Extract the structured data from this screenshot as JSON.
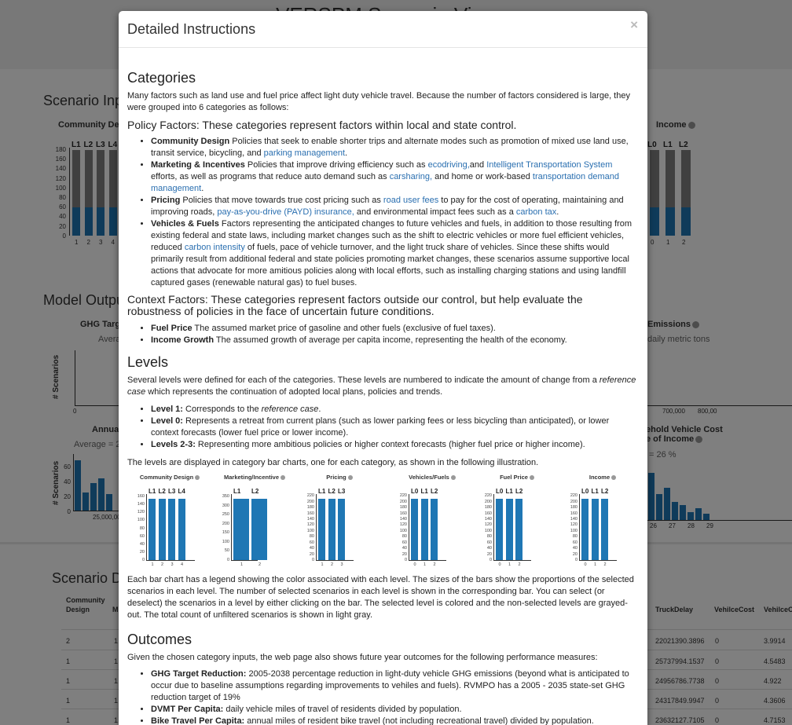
{
  "background": {
    "app_title": "VERSPM Scenario Viewer",
    "scenario_inputs_heading": "Scenario Inp",
    "community_design_caption": "Community Des",
    "income_caption": "Income",
    "left_levels": [
      "L1",
      "L2",
      "L3",
      "L4"
    ],
    "right_levels": [
      "L0",
      "L1",
      "L2"
    ],
    "left_y_ticks": [
      "180",
      "160",
      "140",
      "120",
      "100",
      "80",
      "60",
      "40",
      "20",
      "0"
    ],
    "left_x_ticks": [
      "1",
      "2",
      "3",
      "4"
    ],
    "right_x_ticks": [
      "0",
      "1",
      "2"
    ],
    "model_outputs_heading": "Model Outpu",
    "ghg_caption": "GHG Targ",
    "ghg_sub": "Avera",
    "emissions_caption": "Emissions",
    "emissions_sub": "daily metric tons",
    "scenarios_axis": "# Scenarios",
    "ghg_x_tick": "0",
    "emissions_x_ticks": [
      "700,000",
      "800,00"
    ],
    "annual_caption": "Annua",
    "annual_sub": "Average = 2",
    "annual_y_ticks": [
      "60",
      "40",
      "20",
      "0"
    ],
    "annual_x_tick": "25,000,00",
    "vehicle_cost_caption_1": "ehold Vehicle Cost",
    "vehicle_cost_caption_2": "e of Income",
    "vehicle_cost_sub": "= 26 %",
    "vehicle_cost_x_ticks": [
      "26",
      "27",
      "28",
      "29"
    ],
    "annual_hist": [
      62,
      22,
      34,
      40,
      20
    ],
    "vehicle_hist": [
      58,
      32,
      40,
      22,
      18,
      10,
      15,
      8
    ],
    "scenario_data_heading": "Scenario D",
    "table": {
      "left_header_1": "Community",
      "left_header_2": "Design",
      "left_header_m": "M",
      "right_headers": [
        "TruckDelay",
        "VehilceCost",
        "VehilceO"
      ],
      "left_rows": [
        [
          "2",
          "1"
        ],
        [
          "1",
          "1"
        ],
        [
          "1",
          "1"
        ],
        [
          "1",
          "1"
        ],
        [
          "1",
          "1"
        ]
      ],
      "right_rows": [
        [
          "22021390.3896",
          "0",
          "3.9914"
        ],
        [
          "25737994.1537",
          "0",
          "4.5483"
        ],
        [
          "24956786.7738",
          "0",
          "4.922"
        ],
        [
          "24317849.9947",
          "0",
          "4.3606"
        ],
        [
          "23632127.7105",
          "0",
          "4.7153"
        ]
      ]
    }
  },
  "modal": {
    "title": "Detailed Instructions",
    "close": "×",
    "categories_heading": "Categories",
    "categories_intro": "Many factors such as land use and fuel price affect light duty vehicle travel. Because the number of factors considered is large, they were grouped into 6 categories as follows:",
    "policy_heading": "Policy Factors: These categories represent factors within local and state control.",
    "policy": {
      "cd_term": "Community Design",
      "cd_text": " Policies that seek to enable shorter trips and alternate modes such as promotion of mixed use land use, transit service, bicycling, and ",
      "cd_link": "parking management",
      "cd_end": ".",
      "mi_term": "Marketing & Incentives",
      "mi_text1": " Policies that improve driving efficiency such as ",
      "mi_link1": "ecodriving,",
      "mi_text2": "and ",
      "mi_link2": "Intelligent Transportation System",
      "mi_text3": " efforts, as well as programs that reduce auto demand such as ",
      "mi_link3": "carsharing,",
      "mi_text4": " and home or work-based ",
      "mi_link4": "transportation demand management",
      "mi_end": ".",
      "pr_term": "Pricing",
      "pr_text1": " Policies that move towards true cost pricing such as ",
      "pr_link1": "road user fees",
      "pr_text2": " to pay for the cost of operating, maintaining and improving roads, ",
      "pr_link2": "pay-as-you-drive (PAYD) insurance,",
      "pr_text3": " and environmental impact fees such as a ",
      "pr_link3": "carbon tax",
      "pr_end": ".",
      "vf_term": "Vehicles & Fuels",
      "vf_text1": " Factors representing the anticipated changes to future vehicles and fuels, in addition to those resulting from existing federal and state laws, including market changes such as the shift to electric vehicles or more fuel efficient vehicles, reduced ",
      "vf_link": "carbon intensity",
      "vf_text2": " of fuels, pace of vehicle turnover, and the light truck share of vehicles. Since these shifts would primarily result from additional federal and state policies promoting market changes, these scenarios assume supportive local actions that advocate for more amitious policies along with local efforts, such as installing charging stations and using landfill captured gases (renewable natural gas) to fuel buses."
    },
    "context_heading": "Context Factors: These categories represent factors outside our control, but help evaluate the robustness of policies in the face of uncertain future conditions.",
    "context": {
      "fp_term": "Fuel Price",
      "fp_text": " The assumed market price of gasoline and other fuels (exclusive of fuel taxes).",
      "ig_term": "Income Growth",
      "ig_text": " The assumed growth of average per capita income, representing the health of the economy."
    },
    "levels_heading": "Levels",
    "levels_intro_1": "Several levels were defined for each of the categories. These levels are numbered to indicate the amount of change from a ",
    "levels_intro_em": "reference case",
    "levels_intro_2": " which represents the continuation of adopted local plans, policies and trends.",
    "levels": {
      "l1_term": "Level 1:",
      "l1_text": " Corresponds to the ",
      "l1_em": "reference case",
      "l1_end": ".",
      "l0_term": "Level 0:",
      "l0_text": " Represents a retreat from current plans (such as lower parking fees or less bicycling than anticipated), or lower context forecasts (lower fuel price or lower income).",
      "l23_term": "Levels 2-3:",
      "l23_text": " Representing more ambitious policies or higher context forecasts (higher fuel price or higher income)."
    },
    "levels_displayed": "The levels are displayed in category bar charts, one for each category, as shown in the following illustration.",
    "illustration": [
      {
        "title": "Community Design",
        "levels": [
          "L1",
          "L2",
          "L3",
          "L4"
        ],
        "xt": [
          "1",
          "2",
          "3",
          "4"
        ],
        "yt": [
          "160",
          "140",
          "120",
          "100",
          "80",
          "60",
          "40",
          "20",
          "0"
        ],
        "max": 170
      },
      {
        "title": "Marketing/Incentive",
        "levels": [
          "L1",
          "L2"
        ],
        "xt": [
          "1",
          "2"
        ],
        "yt": [
          "350",
          "300",
          "250",
          "200",
          "150",
          "100",
          "50",
          "0"
        ],
        "max": 350
      },
      {
        "title": "Pricing",
        "levels": [
          "L1",
          "L2",
          "L3"
        ],
        "xt": [
          "1",
          "2",
          "3"
        ],
        "yt": [
          "220",
          "200",
          "180",
          "160",
          "140",
          "120",
          "100",
          "80",
          "60",
          "40",
          "20",
          "0"
        ],
        "max": 228
      },
      {
        "title": "Vehicles/Fuels",
        "levels": [
          "L0",
          "L1",
          "L2"
        ],
        "xt": [
          "0",
          "1",
          "2"
        ],
        "yt": [
          "220",
          "200",
          "180",
          "160",
          "140",
          "120",
          "100",
          "80",
          "60",
          "40",
          "20",
          "0"
        ],
        "max": 228
      },
      {
        "title": "Fuel Price",
        "levels": [
          "L0",
          "L1",
          "L2"
        ],
        "xt": [
          "0",
          "1",
          "2"
        ],
        "yt": [
          "220",
          "200",
          "180",
          "160",
          "140",
          "120",
          "100",
          "80",
          "60",
          "40",
          "20",
          "0"
        ],
        "max": 228
      },
      {
        "title": "Income",
        "levels": [
          "L0",
          "L1",
          "L2"
        ],
        "xt": [
          "0",
          "1",
          "2"
        ],
        "yt": [
          "220",
          "200",
          "180",
          "160",
          "140",
          "120",
          "100",
          "80",
          "60",
          "40",
          "20",
          "0"
        ],
        "max": 228
      }
    ],
    "bar_chart_text": "Each bar chart has a legend showing the color associated with each level. The sizes of the bars show the proportions of the selected scenarios in each level. The number of selected scenarios in each level is shown in the corresponding bar. You can select (or deselect) the scenarios in a level by either clicking on the bar. The selected level is colored and the non-selected levels are grayed-out. The total count of unfiltered scenarios is shown in light gray.",
    "outcomes_heading": "Outcomes",
    "outcomes_intro": "Given the chosen category inputs, the web page also shows future year outcomes for the following performance measures:",
    "outcomes": {
      "ghg_term": "GHG Target Reduction:",
      "ghg_text": " 2005-2038 percentage reduction in light-duty vehicle GHG emissions (beyond what is anticipated to occur due to baseline assumptions regarding improvements to vehiles and fuels). RVMPO has a 2005 - 2035 state-set GHG reduction target of 19%",
      "dvmt_term": "DVMT Per Capita:",
      "dvmt_text": " daily vehicle miles of travel of residents divided by population.",
      "bike_term": "Bike Travel Per Capita:",
      "bike_text": " annual miles of resident bike travel (not including recreational travel) divided by population."
    }
  }
}
